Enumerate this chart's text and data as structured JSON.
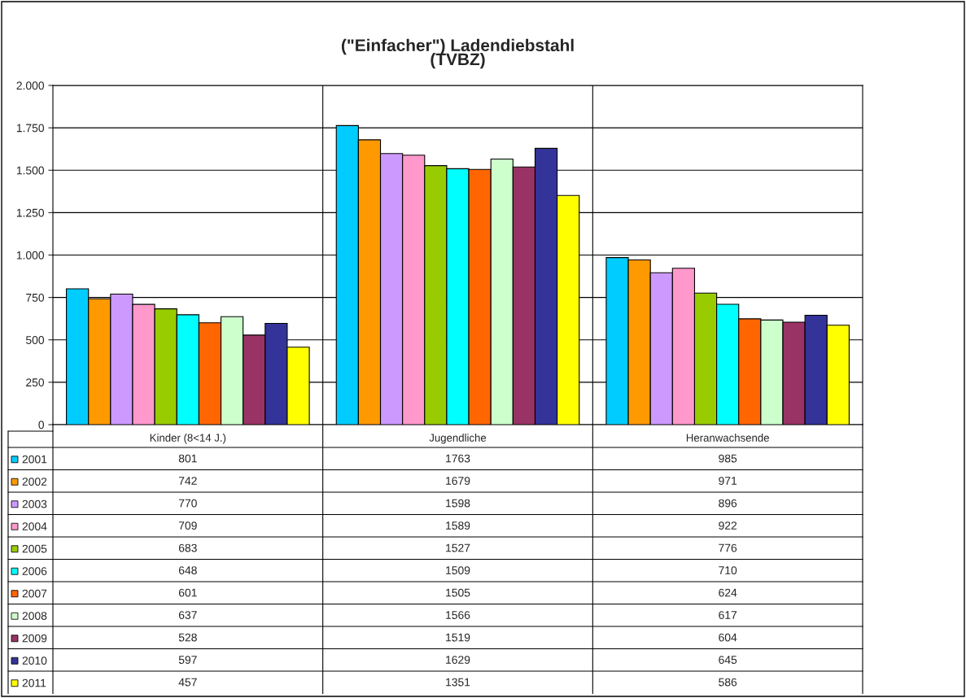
{
  "chart_data": {
    "type": "bar",
    "title": "(\"Einfacher\") Ladendiebstahl\n(TVBZ)",
    "categories": [
      "Kinder (8<14 J.)",
      "Jugendliche",
      "Heranwachsende"
    ],
    "series": [
      {
        "name": "2001",
        "color": "#00ccff",
        "values": [
          801,
          1763,
          985
        ]
      },
      {
        "name": "2002",
        "color": "#ff9900",
        "values": [
          742,
          1679,
          971
        ]
      },
      {
        "name": "2003",
        "color": "#cc99ff",
        "values": [
          770,
          1598,
          896
        ]
      },
      {
        "name": "2004",
        "color": "#ff99cc",
        "values": [
          709,
          1589,
          922
        ]
      },
      {
        "name": "2005",
        "color": "#99cc00",
        "values": [
          683,
          1527,
          776
        ]
      },
      {
        "name": "2006",
        "color": "#00ffff",
        "values": [
          648,
          1509,
          710
        ]
      },
      {
        "name": "2007",
        "color": "#ff6600",
        "values": [
          601,
          1505,
          624
        ]
      },
      {
        "name": "2008",
        "color": "#ccffcc",
        "values": [
          637,
          1566,
          617
        ]
      },
      {
        "name": "2009",
        "color": "#993366",
        "values": [
          528,
          1519,
          604
        ]
      },
      {
        "name": "2010",
        "color": "#333399",
        "values": [
          597,
          1629,
          645
        ]
      },
      {
        "name": "2011",
        "color": "#ffff00",
        "values": [
          457,
          1351,
          586
        ]
      }
    ],
    "ylim": [
      0,
      2000
    ],
    "yticks": [
      0,
      {
        "value": 250,
        "label": "250"
      },
      {
        "value": 500,
        "label": "500"
      },
      {
        "value": 750,
        "label": "750"
      },
      {
        "value": 1000,
        "label": "1.000"
      },
      {
        "value": 1250,
        "label": "1.250"
      },
      {
        "value": 1500,
        "label": "1.500"
      },
      {
        "value": 1750,
        "label": "1.750"
      },
      {
        "value": 2000,
        "label": "2.000"
      }
    ],
    "grid": true,
    "data_labels": true,
    "legend": "bottom left"
  }
}
